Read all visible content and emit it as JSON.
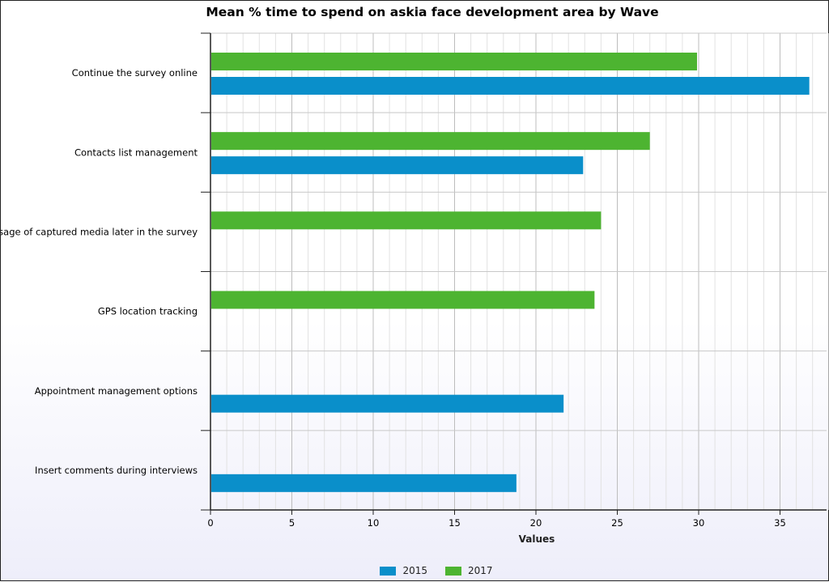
{
  "chart_data": {
    "type": "bar",
    "orientation": "horizontal",
    "title": "Mean % time to spend on askia face development area by Wave",
    "xlabel": "Values",
    "ylabel": "",
    "xlim": [
      0,
      38
    ],
    "x_ticks": [
      0,
      5,
      10,
      15,
      20,
      25,
      30,
      35
    ],
    "grid": true,
    "legend_position": "bottom",
    "categories": [
      "Continue the survey online",
      "Contacts list management",
      "Usage of captured media later in the survey",
      "GPS location tracking",
      "Appointment management options",
      "Insert comments during interviews"
    ],
    "series": [
      {
        "name": "2015",
        "color": "#0a8fca",
        "values": [
          36.8,
          22.9,
          null,
          null,
          21.7,
          18.8
        ]
      },
      {
        "name": "2017",
        "color": "#4db431",
        "values": [
          29.9,
          27.0,
          24.0,
          23.6,
          null,
          null
        ]
      }
    ]
  }
}
